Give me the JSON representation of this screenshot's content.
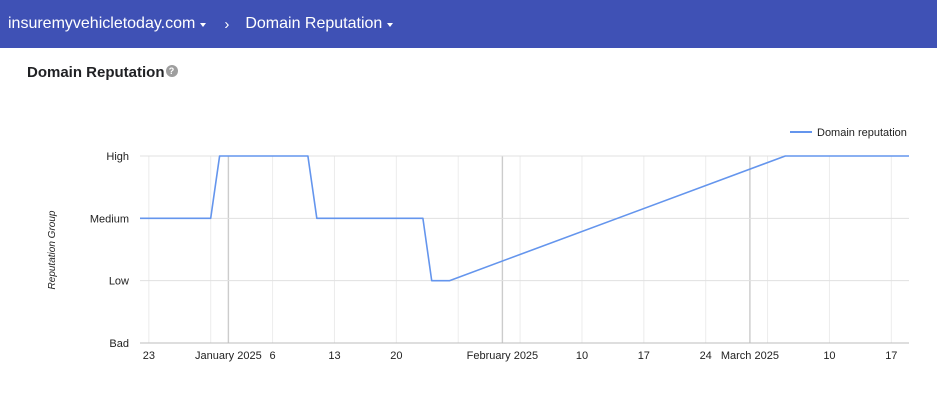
{
  "header": {
    "property": "insuremyvehicletoday.com",
    "separator": "›",
    "section": "Domain Reputation"
  },
  "page": {
    "title": "Domain Reputation",
    "help_icon": "?"
  },
  "colors": {
    "header_bg": "#3f51b5",
    "series_line": "#6495ed",
    "grid": "#e0e0e0"
  },
  "chart_data": {
    "type": "line",
    "title": "",
    "xlabel": "",
    "ylabel": "Reputation Group",
    "y_categories": [
      "Bad",
      "Low",
      "Medium",
      "High"
    ],
    "x_range": [
      "2024-12-22",
      "2025-03-19"
    ],
    "x_ticks": [
      {
        "date": "2024-12-23",
        "label": "23"
      },
      {
        "date": "2025-01-01",
        "label": "January 2025"
      },
      {
        "date": "2025-01-06",
        "label": "6"
      },
      {
        "date": "2025-01-13",
        "label": "13"
      },
      {
        "date": "2025-01-20",
        "label": "20"
      },
      {
        "date": "2025-02-01",
        "label": "February 2025"
      },
      {
        "date": "2025-02-10",
        "label": "10"
      },
      {
        "date": "2025-02-17",
        "label": "17"
      },
      {
        "date": "2025-02-24",
        "label": "24"
      },
      {
        "date": "2025-03-01",
        "label": "March 2025"
      },
      {
        "date": "2025-03-10",
        "label": "10"
      },
      {
        "date": "2025-03-17",
        "label": "17"
      }
    ],
    "series": [
      {
        "name": "Domain reputation",
        "points": [
          {
            "x": "2024-12-22",
            "y": "Medium"
          },
          {
            "x": "2024-12-30",
            "y": "Medium"
          },
          {
            "x": "2024-12-31",
            "y": "High"
          },
          {
            "x": "2025-01-10",
            "y": "High"
          },
          {
            "x": "2025-01-11",
            "y": "Medium"
          },
          {
            "x": "2025-01-23",
            "y": "Medium"
          },
          {
            "x": "2025-01-24",
            "y": "Low"
          },
          {
            "x": "2025-01-26",
            "y": "Low"
          },
          {
            "x": "2025-03-05",
            "y": "High"
          },
          {
            "x": "2025-03-19",
            "y": "High"
          }
        ]
      }
    ],
    "legend_position": "top-right",
    "grid": true
  }
}
